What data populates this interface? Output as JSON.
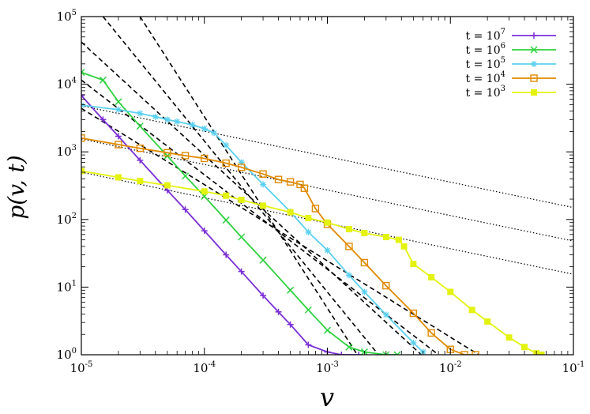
{
  "chart_data": {
    "type": "scatter",
    "title": "",
    "xlabel": "v",
    "ylabel": "p(v, t)",
    "x_scale": "log",
    "y_scale": "log",
    "xlim": [
      1e-05,
      0.1
    ],
    "ylim": [
      1,
      100000
    ],
    "grid": false,
    "legend_position": "top-right",
    "x_ticks": [
      {
        "value": 1e-05,
        "base": "10",
        "exp": "-5"
      },
      {
        "value": 0.0001,
        "base": "10",
        "exp": "-4"
      },
      {
        "value": 0.001,
        "base": "10",
        "exp": "-3"
      },
      {
        "value": 0.01,
        "base": "10",
        "exp": "-2"
      },
      {
        "value": 0.1,
        "base": "10",
        "exp": "-1"
      }
    ],
    "y_ticks": [
      {
        "value": 1,
        "base": "10",
        "exp": "0"
      },
      {
        "value": 10,
        "base": "10",
        "exp": "1"
      },
      {
        "value": 100,
        "base": "10",
        "exp": "2"
      },
      {
        "value": 1000,
        "base": "10",
        "exp": "3"
      },
      {
        "value": 10000,
        "base": "10",
        "exp": "4"
      },
      {
        "value": 100000,
        "base": "10",
        "exp": "5"
      }
    ],
    "series": [
      {
        "name_base": "t = 10",
        "name_exp": "7",
        "color": "#7b2fd6",
        "marker": "plus",
        "x": [
          1e-05,
          1.5e-05,
          2e-05,
          3e-05,
          5e-05,
          7e-05,
          0.0001,
          0.00015,
          0.0002,
          0.0003,
          0.0004,
          0.0005,
          0.0007,
          0.001,
          0.0013,
          0.0018
        ],
        "y": [
          6800,
          3000,
          1700,
          750,
          270,
          140,
          68,
          30,
          17,
          7.5,
          4.3,
          2.8,
          1.4,
          1.1,
          1.0,
          1.0
        ]
      },
      {
        "name_base": "t = 10",
        "name_exp": "6",
        "color": "#2ed13e",
        "marker": "x",
        "x": [
          1e-05,
          1.5e-05,
          2e-05,
          3e-05,
          5e-05,
          7e-05,
          0.0001,
          0.00015,
          0.0002,
          0.0003,
          0.0005,
          0.0007,
          0.001,
          0.0015,
          0.002,
          0.003,
          0.0037
        ],
        "y": [
          15000,
          11500,
          5500,
          2400,
          870,
          440,
          220,
          98,
          55,
          25,
          9,
          4.6,
          2.3,
          1.3,
          1.1,
          1.0,
          1.0
        ]
      },
      {
        "name_base": "t = 10",
        "name_exp": "5",
        "color": "#5ad0f0",
        "marker": "star",
        "x": [
          1e-05,
          2e-05,
          3e-05,
          4e-05,
          5e-05,
          6e-05,
          8e-05,
          0.0001,
          0.00012,
          0.00015,
          0.0002,
          0.0003,
          0.0005,
          0.0007,
          0.001,
          0.0015,
          0.002,
          0.003,
          0.005,
          0.006
        ],
        "y": [
          4900,
          4200,
          3700,
          3300,
          3000,
          2800,
          2500,
          2200,
          1900,
          1250,
          700,
          330,
          130,
          65,
          35,
          15,
          8.5,
          3.9,
          1.5,
          1.1
        ]
      },
      {
        "name_base": "t = 10",
        "name_exp": "4",
        "color": "#e08a00",
        "marker": "square",
        "x": [
          1e-05,
          2e-05,
          3e-05,
          5e-05,
          7e-05,
          0.0001,
          0.00015,
          0.0002,
          0.0003,
          0.0004,
          0.0005,
          0.0006,
          0.00065,
          0.0008,
          0.001,
          0.0015,
          0.002,
          0.003,
          0.005,
          0.007,
          0.01,
          0.013,
          0.016
        ],
        "y": [
          1600,
          1280,
          1130,
          970,
          880,
          800,
          680,
          590,
          470,
          390,
          360,
          330,
          290,
          145,
          85,
          40,
          23,
          10.5,
          4.1,
          2.1,
          1.2,
          1.0,
          1.0
        ]
      },
      {
        "name_base": "t = 10",
        "name_exp": "3",
        "color": "#e4f20f",
        "marker": "filled-square",
        "x": [
          1e-05,
          2e-05,
          3e-05,
          5e-05,
          0.0001,
          0.00015,
          0.0002,
          0.0003,
          0.0005,
          0.0007,
          0.001,
          0.0015,
          0.002,
          0.003,
          0.0038,
          0.0042,
          0.005,
          0.007,
          0.01,
          0.015,
          0.02,
          0.03,
          0.04,
          0.05,
          0.055
        ],
        "y": [
          520,
          420,
          370,
          320,
          260,
          225,
          195,
          160,
          128,
          105,
          90,
          72,
          63,
          55,
          50,
          40,
          22,
          14,
          8.5,
          4.6,
          3.1,
          1.8,
          1.3,
          1.05,
          1.0
        ]
      }
    ],
    "reference_lines": [
      {
        "style": "dashed",
        "x": [
          3e-05,
          0.00175
        ],
        "y": [
          100000,
          1
        ]
      },
      {
        "style": "dashed",
        "x": [
          1.5e-05,
          0.0026
        ],
        "y": [
          100000,
          1
        ]
      },
      {
        "style": "dashed",
        "x": [
          1e-05,
          0.0058
        ],
        "y": [
          42000,
          1
        ]
      },
      {
        "style": "dashed",
        "x": [
          1e-05,
          0.008
        ],
        "y": [
          11500,
          1
        ]
      },
      {
        "style": "dashed",
        "x": [
          1e-05,
          0.017
        ],
        "y": [
          4400,
          1
        ]
      },
      {
        "style": "dotted",
        "x": [
          1e-05,
          0.1
        ],
        "y": [
          4800,
          150
        ]
      },
      {
        "style": "dotted",
        "x": [
          1e-05,
          0.1
        ],
        "y": [
          1550,
          48
        ]
      },
      {
        "style": "dotted",
        "x": [
          1e-05,
          0.1
        ],
        "y": [
          500,
          15.5
        ]
      }
    ]
  }
}
